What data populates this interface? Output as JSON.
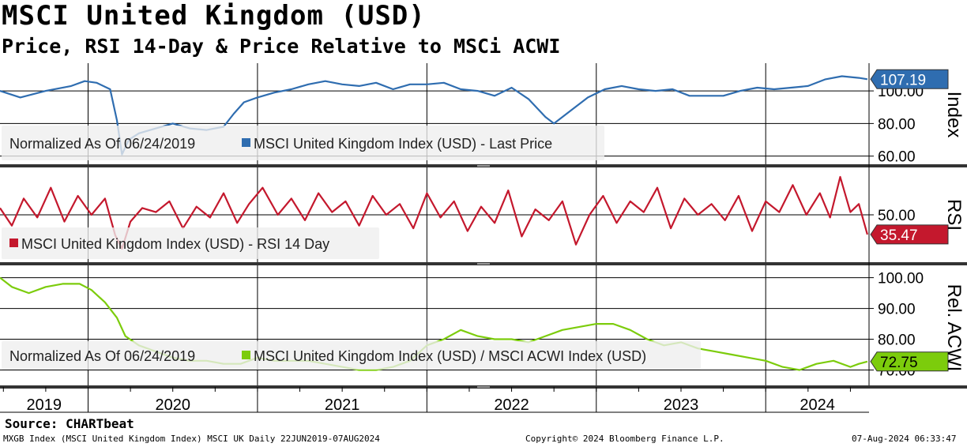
{
  "header": {
    "title": "MSCI United Kingdom (USD)",
    "subtitle": "Price, RSI 14-Day & Price Relative to MSCi ACWI"
  },
  "colors": {
    "price": "#2f6db0",
    "price_faded": "#7ea7d6",
    "rsi": "#c4182d",
    "rsi_faded": "#e07b88",
    "rel": "#7ccc0c",
    "rel_faded": "#c2e889",
    "legend_bg": "#eeeeee"
  },
  "chart_data": [
    {
      "name": "price",
      "type": "line",
      "axis_label": "Index",
      "ylim": [
        55,
        117
      ],
      "ticks": [
        "100.00",
        "80.00",
        "60.00"
      ],
      "tick_values": [
        100,
        80,
        60
      ],
      "legend_prefix": "Normalized As Of 06/24/2019",
      "legend_series": "MSCI United Kingdom Index (USD) - Last Price",
      "last_value": "107.19",
      "x": [
        2019.48,
        2019.6,
        2019.75,
        2019.9,
        2019.98,
        2020.05,
        2020.13,
        2020.17,
        2020.2,
        2020.24,
        2020.3,
        2020.4,
        2020.5,
        2020.6,
        2020.7,
        2020.8,
        2020.86,
        2020.92,
        2021.0,
        2021.1,
        2021.2,
        2021.3,
        2021.4,
        2021.5,
        2021.6,
        2021.7,
        2021.8,
        2021.9,
        2022.0,
        2022.1,
        2022.2,
        2022.3,
        2022.4,
        2022.5,
        2022.6,
        2022.7,
        2022.75,
        2022.85,
        2022.95,
        2023.05,
        2023.15,
        2023.25,
        2023.35,
        2023.45,
        2023.55,
        2023.65,
        2023.75,
        2023.85,
        2023.95,
        2024.05,
        2024.15,
        2024.25,
        2024.35,
        2024.45,
        2024.55,
        2024.6
      ],
      "y": [
        100,
        96,
        100,
        103,
        106,
        105,
        101,
        82,
        61,
        70,
        74,
        77,
        80,
        77,
        76,
        78,
        86,
        93,
        96,
        99,
        101,
        104,
        106,
        104,
        103,
        105,
        101,
        104,
        104,
        105,
        101,
        100,
        97,
        102,
        95,
        84,
        80,
        88,
        96,
        101,
        103,
        101,
        100,
        101,
        97,
        97,
        97,
        100,
        102,
        101,
        102,
        103,
        107,
        109,
        108,
        107.19
      ]
    },
    {
      "name": "rsi",
      "type": "line",
      "axis_label": "RSI",
      "ylim": [
        15,
        85
      ],
      "ticks": [
        "50.00"
      ],
      "tick_values": [
        50
      ],
      "legend_series": "MSCI United Kingdom Index (USD) - RSI 14 Day",
      "last_value": "35.47",
      "x": [
        2019.48,
        2019.55,
        2019.62,
        2019.7,
        2019.78,
        2019.86,
        2019.94,
        2020.02,
        2020.1,
        2020.16,
        2020.2,
        2020.25,
        2020.32,
        2020.4,
        2020.48,
        2020.56,
        2020.64,
        2020.72,
        2020.8,
        2020.88,
        2020.95,
        2021.03,
        2021.12,
        2021.2,
        2021.28,
        2021.36,
        2021.44,
        2021.52,
        2021.6,
        2021.68,
        2021.76,
        2021.84,
        2021.92,
        2022.0,
        2022.08,
        2022.16,
        2022.24,
        2022.32,
        2022.4,
        2022.48,
        2022.56,
        2022.64,
        2022.72,
        2022.8,
        2022.88,
        2022.96,
        2023.04,
        2023.12,
        2023.2,
        2023.28,
        2023.36,
        2023.44,
        2023.52,
        2023.6,
        2023.68,
        2023.76,
        2023.84,
        2023.92,
        2024.0,
        2024.08,
        2024.16,
        2024.24,
        2024.32,
        2024.38,
        2024.44,
        2024.5,
        2024.55,
        2024.6
      ],
      "y": [
        55,
        42,
        62,
        48,
        70,
        45,
        64,
        50,
        62,
        35,
        25,
        45,
        55,
        52,
        60,
        40,
        56,
        48,
        66,
        44,
        58,
        70,
        50,
        62,
        46,
        66,
        52,
        60,
        42,
        64,
        50,
        58,
        40,
        66,
        48,
        60,
        38,
        56,
        44,
        68,
        34,
        54,
        46,
        60,
        28,
        50,
        64,
        44,
        60,
        52,
        70,
        40,
        62,
        50,
        58,
        46,
        64,
        38,
        60,
        52,
        72,
        50,
        66,
        48,
        78,
        52,
        58,
        35.47
      ]
    },
    {
      "name": "relative",
      "type": "line",
      "axis_label": "Rel. ACWI",
      "ylim": [
        65,
        104
      ],
      "ticks": [
        "100.00",
        "90.00",
        "80.00",
        "70.00"
      ],
      "tick_values": [
        100,
        90,
        80,
        70
      ],
      "legend_prefix": "Normalized As Of 06/24/2019",
      "legend_series": "MSCI United Kingdom Index (USD) / MSCI ACWI Index (USD)",
      "last_value": "72.75",
      "x": [
        2019.48,
        2019.55,
        2019.65,
        2019.75,
        2019.85,
        2019.95,
        2020.02,
        2020.1,
        2020.17,
        2020.22,
        2020.3,
        2020.4,
        2020.5,
        2020.6,
        2020.7,
        2020.8,
        2020.9,
        2021.0,
        2021.1,
        2021.2,
        2021.3,
        2021.4,
        2021.5,
        2021.6,
        2021.7,
        2021.8,
        2021.9,
        2022.0,
        2022.1,
        2022.2,
        2022.3,
        2022.4,
        2022.5,
        2022.6,
        2022.7,
        2022.8,
        2022.9,
        2023.0,
        2023.1,
        2023.2,
        2023.3,
        2023.4,
        2023.5,
        2023.6,
        2023.7,
        2023.8,
        2023.9,
        2024.0,
        2024.1,
        2024.2,
        2024.3,
        2024.4,
        2024.5,
        2024.55,
        2024.6
      ],
      "y": [
        100,
        97,
        95,
        97,
        98,
        98,
        96,
        92,
        87,
        81,
        78,
        76,
        74,
        73,
        73,
        72,
        72,
        74,
        73,
        73,
        73,
        72,
        71,
        70,
        70,
        71,
        73,
        78,
        80,
        83,
        81,
        80,
        80,
        79,
        81,
        83,
        84,
        85,
        85,
        83,
        80,
        78,
        79,
        77,
        76,
        75,
        74,
        73,
        71,
        70,
        72,
        73,
        71,
        72,
        72.75
      ]
    }
  ],
  "x_axis": {
    "years": [
      "2019",
      "2020",
      "2021",
      "2022",
      "2023",
      "2024"
    ],
    "year_boundaries": [
      2020,
      2021,
      2022,
      2023,
      2024
    ],
    "range": [
      2019.48,
      2024.61
    ]
  },
  "footer": {
    "source": "Source: CHARTbeat",
    "left": "MXGB Index (MSCI United Kingdom Index) MSCI UK  Daily 22JUN2019-07AUG2024",
    "center": "Copyright© 2024 Bloomberg Finance L.P.",
    "right": "07-Aug-2024 06:33:47"
  }
}
